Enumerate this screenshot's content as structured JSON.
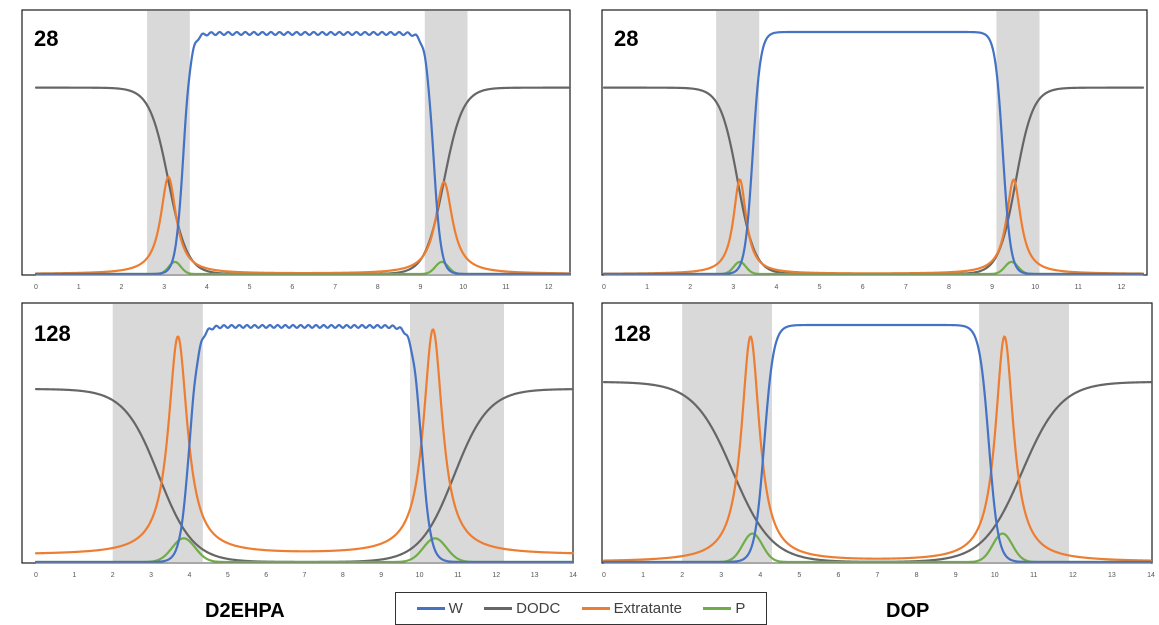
{
  "extractant_titles": {
    "left": "D2EHPA",
    "right": "DOP"
  },
  "legend": [
    {
      "name": "W",
      "color": "#4472c4"
    },
    {
      "name": "DODC",
      "color": "#666666"
    },
    {
      "name": "Extratante",
      "color": "#ed7d31"
    },
    {
      "name": "P",
      "color": "#70ad47"
    }
  ],
  "chart_data": [
    {
      "type": "line",
      "label": "28",
      "xlim": [
        0,
        12.5
      ],
      "xticks": [
        "0",
        "1",
        "2",
        "3",
        "4",
        "5",
        "6",
        "7",
        "8",
        "9",
        "10",
        "11",
        "12"
      ],
      "shaded_x_ranges": [
        [
          2.6,
          3.6
        ],
        [
          9.1,
          10.1
        ]
      ],
      "grid": false,
      "series_profiles": {
        "W": {
          "top": 1.0,
          "interfaces": [
            3.45,
            9.3
          ],
          "width": 0.09,
          "ripple": 0.012
        },
        "DODC": {
          "plateau": 0.77,
          "interfaces": [
            3.1,
            9.55
          ],
          "width": 0.22
        },
        "Extratante": {
          "peaks": [
            [
              3.1,
              0.4,
              0.22
            ],
            [
              9.55,
              0.38,
              0.24
            ]
          ]
        },
        "P": {
          "peaks": [
            [
              3.25,
              0.05,
              0.14
            ],
            [
              9.5,
              0.05,
              0.15
            ]
          ]
        }
      }
    },
    {
      "type": "line",
      "label": "28",
      "xlim": [
        0,
        12.5
      ],
      "xticks": [
        "0",
        "1",
        "2",
        "3",
        "4",
        "5",
        "6",
        "7",
        "8",
        "9",
        "10",
        "11",
        "12"
      ],
      "shaded_x_ranges": [
        [
          2.6,
          3.6
        ],
        [
          9.1,
          10.1
        ]
      ],
      "grid": false,
      "series_profiles": {
        "W": {
          "top": 1.0,
          "interfaces": [
            3.45,
            9.25
          ],
          "width": 0.09,
          "ripple": 0.0
        },
        "DODC": {
          "plateau": 0.77,
          "interfaces": [
            3.1,
            9.55
          ],
          "width": 0.2
        },
        "Extratante": {
          "peaks": [
            [
              3.15,
              0.39,
              0.18
            ],
            [
              9.5,
              0.39,
              0.2
            ]
          ]
        },
        "P": {
          "peaks": [
            [
              3.15,
              0.05,
              0.14
            ],
            [
              9.45,
              0.05,
              0.15
            ]
          ]
        }
      }
    },
    {
      "type": "line",
      "label": "128",
      "xlim": [
        0,
        14
      ],
      "xticks": [
        "0",
        "1",
        "2",
        "3",
        "4",
        "5",
        "6",
        "7",
        "8",
        "9",
        "10",
        "11",
        "12",
        "13",
        "14"
      ],
      "shaded_x_ranges": [
        [
          2.0,
          4.35
        ],
        [
          9.75,
          12.2
        ]
      ],
      "grid": false,
      "series_profiles": {
        "W": {
          "top": 1.0,
          "interfaces": [
            4.0,
            10.05
          ],
          "width": 0.12,
          "ripple": 0.012
        },
        "DODC": {
          "plateau": 0.73,
          "interfaces": [
            3.2,
            10.9
          ],
          "width": 0.45
        },
        "Extratante": {
          "peaks": [
            [
              3.7,
              0.92,
              0.3
            ],
            [
              10.35,
              0.95,
              0.3
            ]
          ],
          "base": 0.03
        },
        "P": {
          "peaks": [
            [
              3.85,
              0.1,
              0.3
            ],
            [
              10.4,
              0.1,
              0.3
            ]
          ]
        }
      }
    },
    {
      "type": "line",
      "label": "128",
      "xlim": [
        0,
        14
      ],
      "xticks": [
        "0",
        "1",
        "2",
        "3",
        "4",
        "5",
        "6",
        "7",
        "8",
        "9",
        "10",
        "11",
        "12",
        "13",
        "14"
      ],
      "shaded_x_ranges": [
        [
          2.0,
          4.3
        ],
        [
          9.6,
          11.9
        ]
      ],
      "grid": false,
      "series_profiles": {
        "W": {
          "top": 1.0,
          "interfaces": [
            4.1,
            9.85
          ],
          "width": 0.12,
          "ripple": 0.0
        },
        "DODC": {
          "plateau": 0.76,
          "interfaces": [
            3.3,
            10.7
          ],
          "width": 0.5
        },
        "Extratante": {
          "peaks": [
            [
              3.75,
              0.95,
              0.28
            ],
            [
              10.25,
              0.95,
              0.28
            ]
          ],
          "base": 0.0
        },
        "P": {
          "peaks": [
            [
              3.8,
              0.12,
              0.25
            ],
            [
              10.2,
              0.12,
              0.25
            ]
          ]
        }
      }
    }
  ]
}
